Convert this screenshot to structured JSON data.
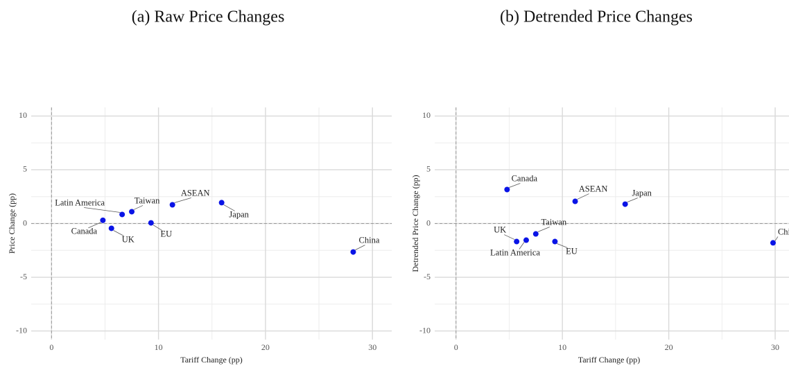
{
  "chart_data": [
    {
      "type": "scatter",
      "title": "(a) Raw Price Changes",
      "xlabel": "Tariff Change (pp)",
      "ylabel": "Price Change (pp)",
      "labels": [
        "Canada",
        "UK",
        "Latin America",
        "Taiwan",
        "EU",
        "ASEAN",
        "Japan",
        "China"
      ],
      "x": [
        4.8,
        5.6,
        6.6,
        7.5,
        9.3,
        11.3,
        15.9,
        28.2
      ],
      "y": [
        0.3,
        -0.45,
        0.84,
        1.1,
        0.06,
        1.74,
        1.94,
        -2.65
      ],
      "color": "#0a14e6",
      "xlim": [
        -1.9,
        31.8
      ],
      "ylim": [
        -10.8,
        10.8
      ],
      "xticks": [
        0,
        10,
        20,
        30
      ],
      "yticks": [
        -10,
        -5,
        0,
        5,
        10
      ],
      "grid": true
    },
    {
      "type": "scatter",
      "title": "(b) Detrended Price Changes",
      "xlabel": "Tariff Change (pp)",
      "ylabel": "Detrended Price Change (pp)",
      "labels": [
        "Canada",
        "UK",
        "Latin America",
        "Taiwan",
        "EU",
        "ASEAN",
        "Japan",
        "China"
      ],
      "x": [
        4.8,
        5.7,
        6.6,
        7.5,
        9.3,
        11.2,
        15.9,
        29.8
      ],
      "y": [
        3.16,
        -1.68,
        -1.55,
        -0.97,
        -1.68,
        2.06,
        1.8,
        -1.8
      ],
      "color": "#0a14e6",
      "xlim": [
        -2,
        31.3
      ],
      "ylim": [
        -10.8,
        10.8
      ],
      "xticks": [
        0,
        10,
        20,
        30
      ],
      "yticks": [
        -10,
        -5,
        0,
        5,
        10
      ],
      "grid": true
    }
  ]
}
